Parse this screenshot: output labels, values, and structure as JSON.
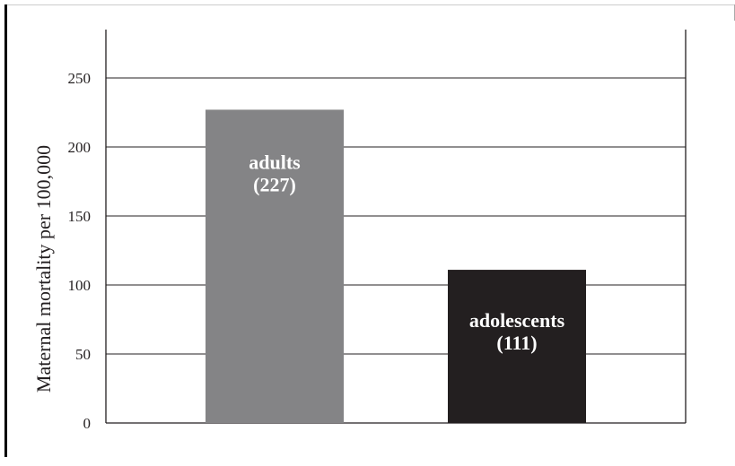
{
  "chart_data": {
    "type": "bar",
    "categories": [
      "adults",
      "adolescents"
    ],
    "values": [
      227,
      111
    ],
    "data_labels": [
      "(227)",
      "(111)"
    ],
    "ylabel": "Maternal mortality per 100,000",
    "xlabel": "",
    "ylim": [
      0,
      275
    ],
    "yticks": [
      0,
      50,
      100,
      150,
      200,
      250
    ],
    "grid": true,
    "legend": "none",
    "colors": {
      "adults": "#848486",
      "adolescents": "#231f20",
      "gridline": "#231f20",
      "label_text": "#ffffff"
    }
  }
}
